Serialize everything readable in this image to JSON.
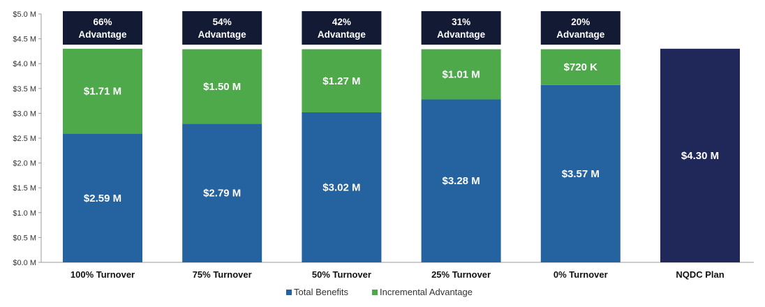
{
  "chart_data": {
    "type": "bar",
    "stacked": true,
    "title": "",
    "xlabel": "",
    "ylabel": "",
    "ylim": [
      0,
      5.0
    ],
    "y_ticks": [
      {
        "value": 0,
        "label": "$0.0 M"
      },
      {
        "value": 0.5,
        "label": "$0.5 M"
      },
      {
        "value": 1.0,
        "label": "$1.0 M"
      },
      {
        "value": 1.5,
        "label": "$1.5 M"
      },
      {
        "value": 2.0,
        "label": "$2.0 M"
      },
      {
        "value": 2.5,
        "label": "$2.5 M"
      },
      {
        "value": 3.0,
        "label": "$3.0 M"
      },
      {
        "value": 3.5,
        "label": "$3.5 M"
      },
      {
        "value": 4.0,
        "label": "$4.0 M"
      },
      {
        "value": 4.5,
        "label": "$4.5 M"
      },
      {
        "value": 5.0,
        "label": "$5.0 M"
      }
    ],
    "categories": [
      "100% Turnover",
      "75% Turnover",
      "50% Turnover",
      "25% Turnover",
      "0% Turnover",
      "NQDC Plan"
    ],
    "series": [
      {
        "name": "Total Benefits",
        "color": "#2462a0",
        "values": [
          2.59,
          2.79,
          3.02,
          3.28,
          3.57,
          null
        ],
        "labels": [
          "$2.59 M",
          "$2.79 M",
          "$3.02 M",
          "$3.28 M",
          "$3.57 M",
          null
        ]
      },
      {
        "name": "Incremental Advantage",
        "color": "#4ea94a",
        "values": [
          1.71,
          1.5,
          1.27,
          1.01,
          0.72,
          null
        ],
        "labels": [
          "$1.71 M",
          "$1.50 M",
          "$1.27 M",
          "$1.01 M",
          "$720 K",
          null
        ]
      }
    ],
    "nqdc": {
      "category": "NQDC Plan",
      "value": 4.3,
      "label": "$4.30 M",
      "color": "#1f2859"
    },
    "advantage_callouts": [
      {
        "percent": "66%",
        "text": "Advantage"
      },
      {
        "percent": "54%",
        "text": "Advantage"
      },
      {
        "percent": "42%",
        "text": "Advantage"
      },
      {
        "percent": "31%",
        "text": "Advantage"
      },
      {
        "percent": "20%",
        "text": "Advantage"
      }
    ],
    "callout_color": "#131a33",
    "legend": {
      "placement": "bottom-center",
      "items": [
        {
          "name": "Total Benefits",
          "color": "#2462a0"
        },
        {
          "name": "Incremental Advantage",
          "color": "#4ea94a"
        }
      ]
    }
  }
}
